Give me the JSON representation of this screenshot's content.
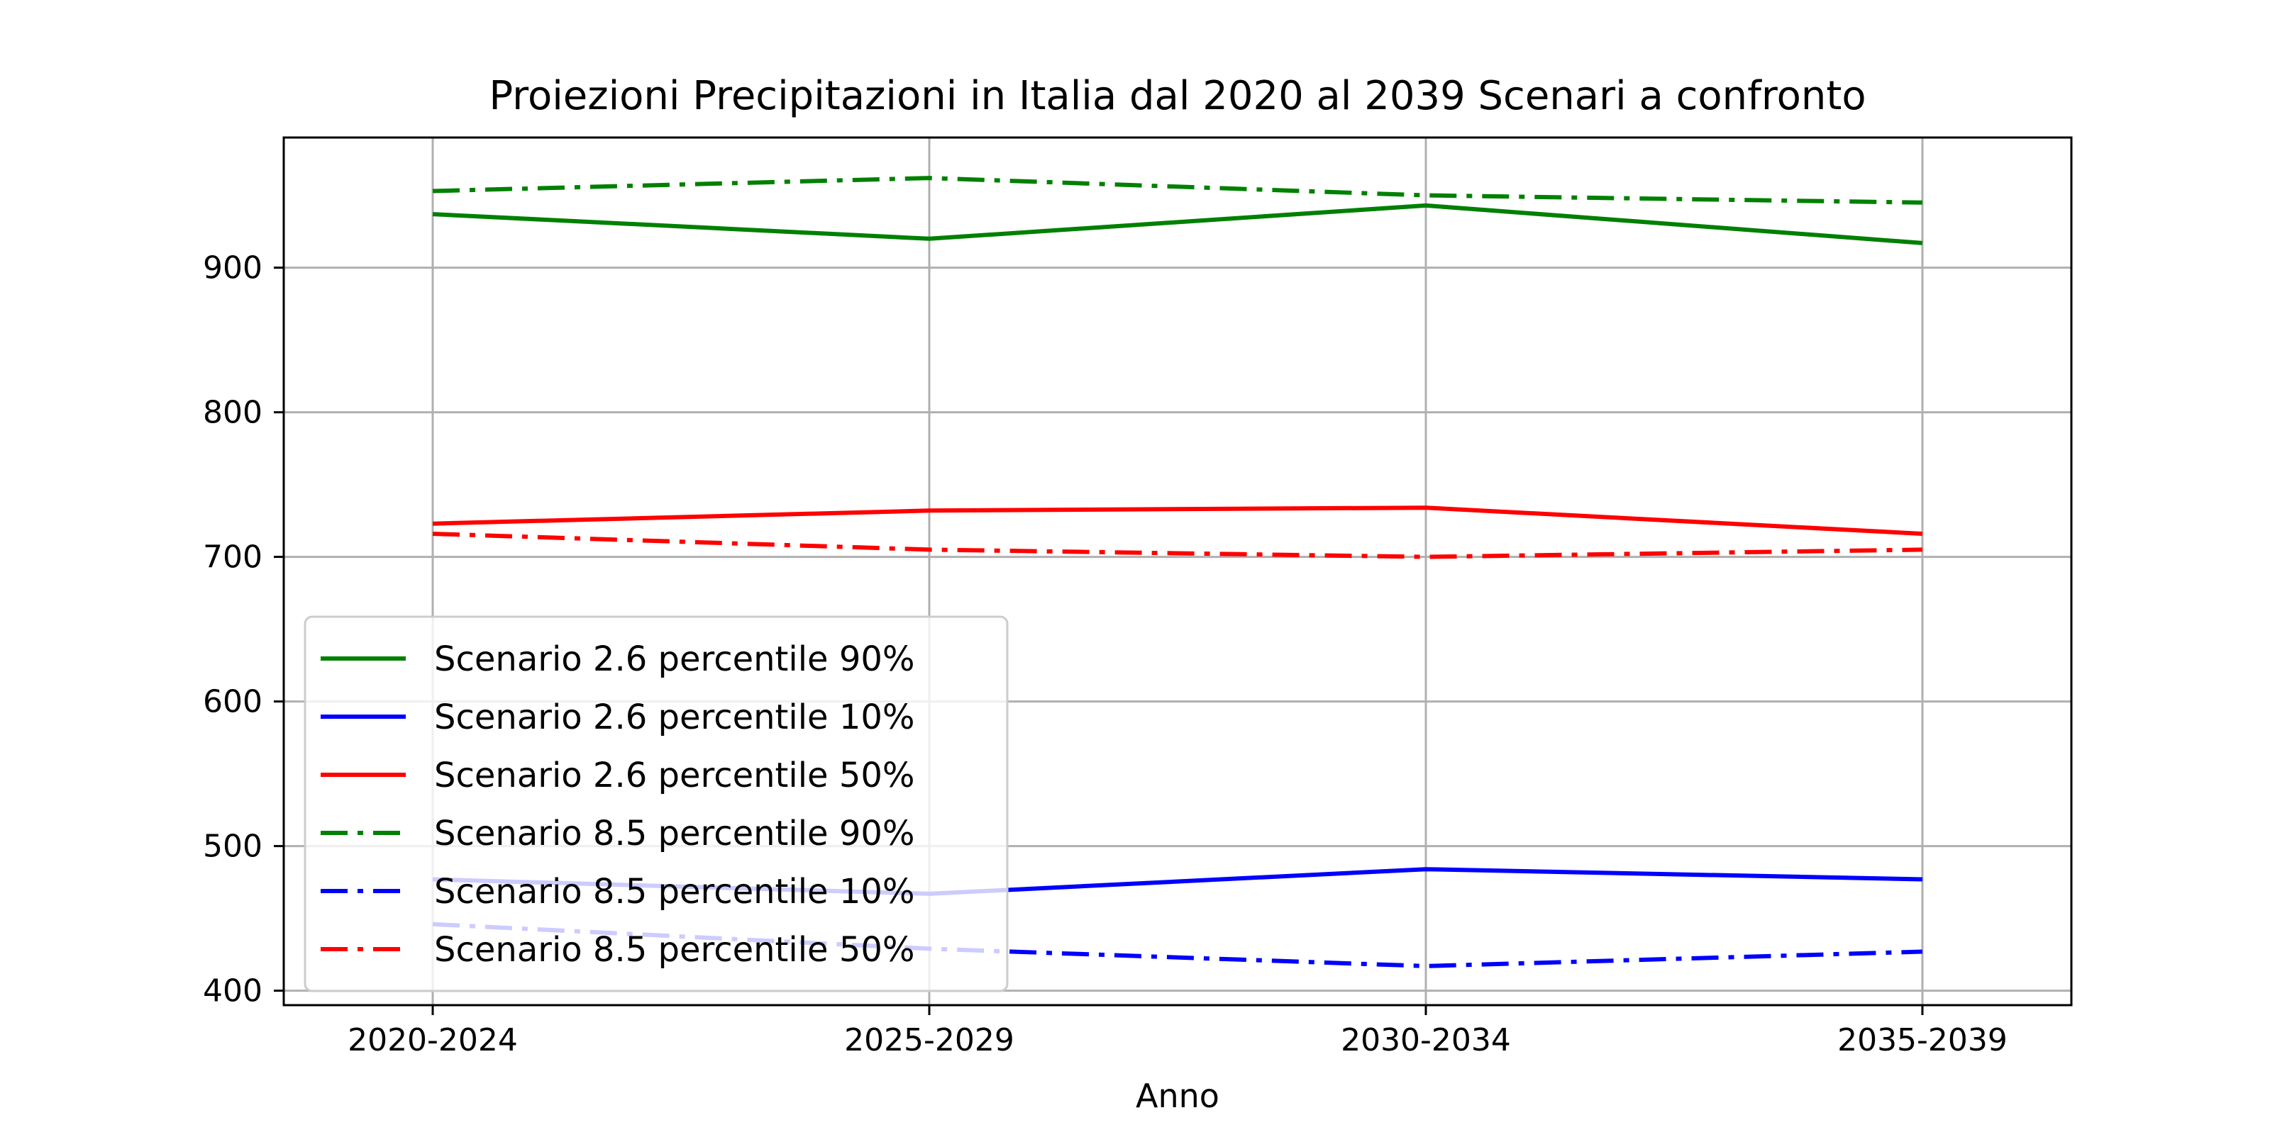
{
  "chart_data": {
    "type": "line",
    "title": "Proiezioni Precipitazioni in Italia dal 2020 al 2039 Scenari a confronto",
    "xlabel": "Anno",
    "ylabel": "",
    "categories": [
      "2020-2024",
      "2025-2029",
      "2030-2034",
      "2035-2039"
    ],
    "ylim": [
      390,
      990
    ],
    "yticks": [
      400,
      500,
      600,
      700,
      800,
      900
    ],
    "grid": true,
    "legend": {
      "position": "lower-left"
    },
    "series": [
      {
        "name": "Scenario 2.6 percentile 90%",
        "color": "#008000",
        "style": "solid",
        "values": [
          937,
          920,
          943,
          917
        ]
      },
      {
        "name": "Scenario 2.6 percentile 10%",
        "color": "#0000ff",
        "style": "solid",
        "values": [
          477,
          467,
          484,
          477
        ]
      },
      {
        "name": "Scenario 2.6 percentile 50%",
        "color": "#ff0000",
        "style": "solid",
        "values": [
          723,
          732,
          734,
          716
        ]
      },
      {
        "name": "Scenario 8.5 percentile 90%",
        "color": "#008000",
        "style": "dashdot",
        "values": [
          953,
          962,
          950,
          945
        ]
      },
      {
        "name": "Scenario 8.5 percentile 10%",
        "color": "#0000ff",
        "style": "dashdot",
        "values": [
          446,
          429,
          417,
          427
        ]
      },
      {
        "name": "Scenario 8.5 percentile 50%",
        "color": "#ff0000",
        "style": "dashdot",
        "values": [
          716,
          705,
          700,
          705
        ]
      }
    ]
  }
}
